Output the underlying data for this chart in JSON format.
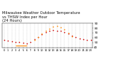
{
  "title": "Milwaukee Weather Outdoor Temperature",
  "subtitle": "vs THSW Index per Hour",
  "subtitle2": "(24 Hours)",
  "hours": [
    0,
    1,
    2,
    3,
    4,
    5,
    6,
    7,
    8,
    9,
    10,
    11,
    12,
    13,
    14,
    15,
    16,
    17,
    18,
    19,
    20,
    21,
    22,
    23
  ],
  "temp": [
    55,
    54,
    53,
    52,
    51,
    50,
    49,
    52,
    57,
    62,
    67,
    71,
    74,
    76,
    75,
    74,
    72,
    68,
    64,
    61,
    59,
    57,
    56,
    55
  ],
  "thsw": [
    null,
    null,
    null,
    null,
    null,
    null,
    null,
    null,
    55,
    62,
    69,
    74,
    79,
    83,
    84,
    82,
    77,
    70,
    63,
    null,
    null,
    null,
    null,
    null
  ],
  "temp_color": "#cc0000",
  "thsw_color": "#ff8800",
  "line_color": "#ff8800",
  "line_x1": 3,
  "line_x2": 6,
  "line_y": 44,
  "bg_color": "#ffffff",
  "grid_color": "#bbbbbb",
  "ylim": [
    40,
    90
  ],
  "yticks": [
    40,
    50,
    60,
    70,
    80,
    90
  ],
  "xlim": [
    -0.5,
    23.5
  ],
  "title_fontsize": 3.8,
  "tick_fontsize": 3.0,
  "dot_size": 1.5
}
